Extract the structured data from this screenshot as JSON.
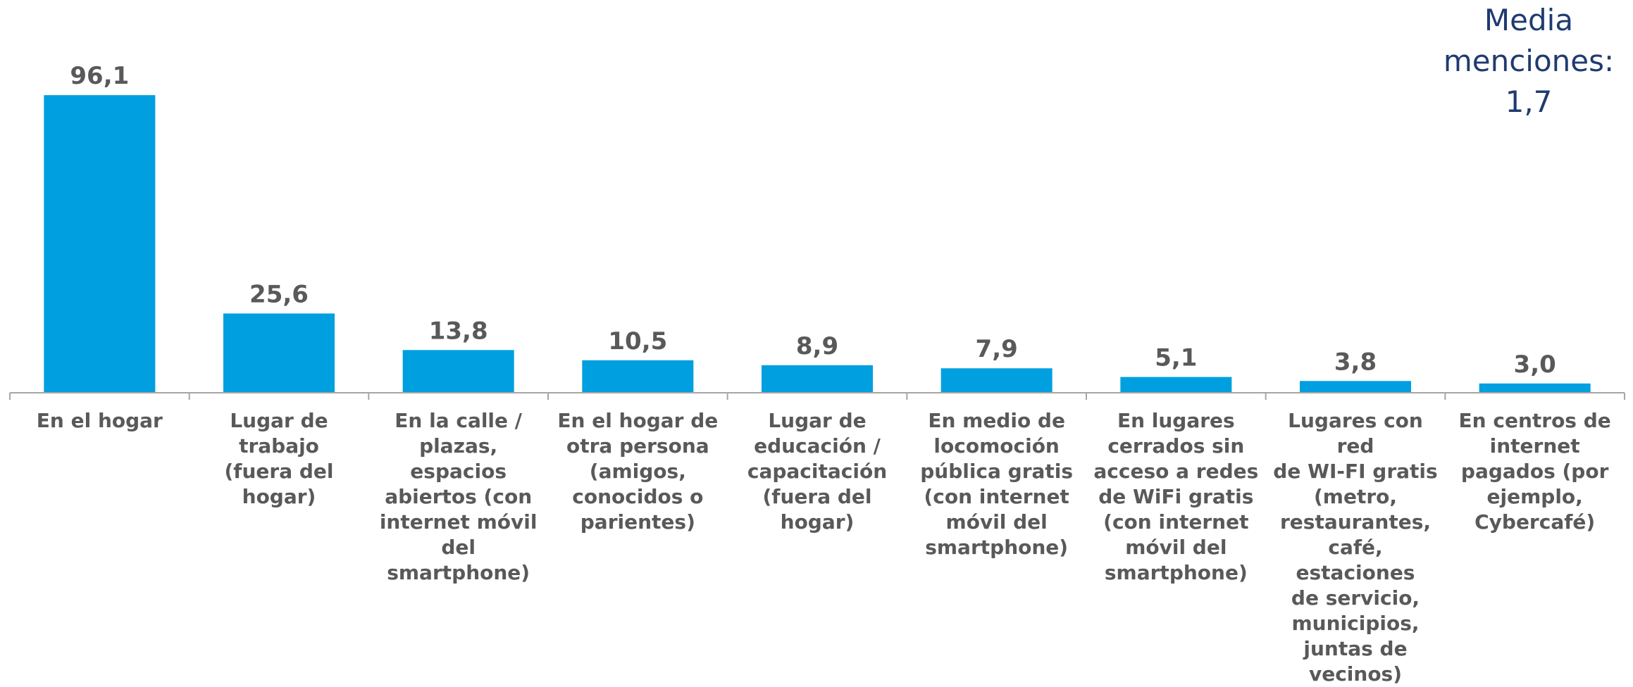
{
  "annotation": {
    "lines": [
      "Media",
      "menciones:",
      "1,7"
    ]
  },
  "colors": {
    "bar": "#009fe0",
    "value_label": "#595959",
    "category_label": "#595959",
    "axis": "#a6a6a6",
    "annotation": "#1f3b70"
  },
  "chart_data": {
    "type": "bar",
    "categories": [
      "En el hogar",
      "Lugar de trabajo (fuera del hogar)",
      "En la calle / plazas, espacios abiertos (con internet móvil del smartphone)",
      "En el hogar de otra persona (amigos, conocidos o parientes)",
      "Lugar de educación / capacitación (fuera del hogar)",
      "En medio de locomoción pública gratis (con  internet móvil del smartphone)",
      "En lugares cerrados sin acceso a redes de WiFi  gratis (con internet móvil del smartphone)",
      "Lugares con red de WI-FI gratis (metro, restaurantes, café, estaciones de servicio, municipios, juntas de vecinos)",
      "En centros de internet pagados (por ejemplo, Cybercafé)"
    ],
    "category_lines": [
      [
        "En el hogar"
      ],
      [
        "Lugar de trabajo",
        "(fuera del",
        "hogar)"
      ],
      [
        "En la calle /",
        "plazas, espacios",
        "abiertos (con",
        "internet móvil",
        "del smartphone)"
      ],
      [
        "En el hogar de",
        "otra persona",
        "(amigos,",
        "conocidos o",
        "parientes)"
      ],
      [
        "Lugar de",
        "educación /",
        "capacitación",
        "(fuera del",
        "hogar)"
      ],
      [
        "En medio de",
        "locomoción",
        "pública gratis",
        "(con  internet",
        "móvil del",
        "smartphone)"
      ],
      [
        "En lugares",
        "cerrados sin",
        "acceso a redes",
        "de WiFi  gratis",
        "(con internet",
        "móvil del",
        "smartphone)"
      ],
      [
        "Lugares con red",
        "de WI-FI gratis",
        "(metro,",
        "restaurantes,",
        "café, estaciones",
        "de servicio,",
        "municipios,",
        "juntas de",
        "vecinos)"
      ],
      [
        "En centros de",
        "internet",
        "pagados (por",
        "ejemplo,",
        "Cybercafé)"
      ]
    ],
    "values": [
      96.1,
      25.6,
      13.8,
      10.5,
      8.9,
      7.9,
      5.1,
      3.8,
      3.0
    ],
    "value_labels": [
      "96,1",
      "25,6",
      "13,8",
      "10,5",
      "8,9",
      "7,9",
      "5,1",
      "3,8",
      "3,0"
    ],
    "ylim": [
      0,
      100
    ],
    "grid": false,
    "legend": "none"
  }
}
